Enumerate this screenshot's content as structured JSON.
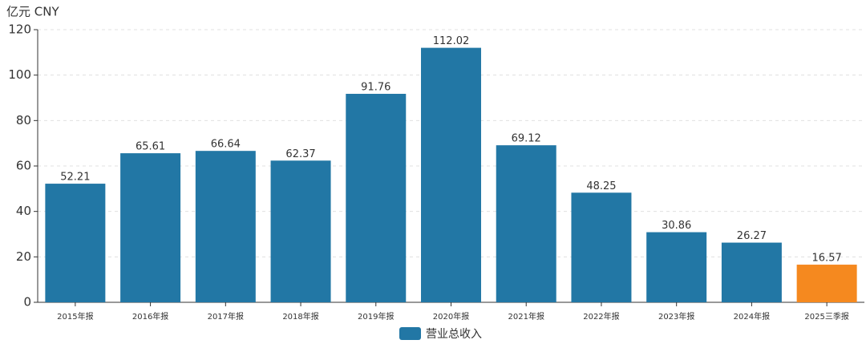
{
  "chart_data": {
    "type": "bar",
    "unit_label": "亿元  CNY",
    "categories": [
      "2015年报",
      "2016年报",
      "2017年报",
      "2018年报",
      "2019年报",
      "2020年报",
      "2021年报",
      "2022年报",
      "2023年报",
      "2024年报",
      "2025三季报"
    ],
    "series": [
      {
        "name": "营业总收入",
        "color": "#2277a5",
        "values": [
          52.21,
          65.61,
          66.64,
          62.37,
          91.76,
          112.02,
          69.12,
          48.25,
          30.86,
          26.27,
          16.57
        ]
      }
    ],
    "bar_colors": [
      "#2277a5",
      "#2277a5",
      "#2277a5",
      "#2277a5",
      "#2277a5",
      "#2277a5",
      "#2277a5",
      "#2277a5",
      "#2277a5",
      "#2277a5",
      "#f5891f"
    ],
    "ylim": [
      0,
      120
    ],
    "yticks": [
      0,
      20,
      40,
      60,
      80,
      100,
      120
    ],
    "grid": true
  }
}
